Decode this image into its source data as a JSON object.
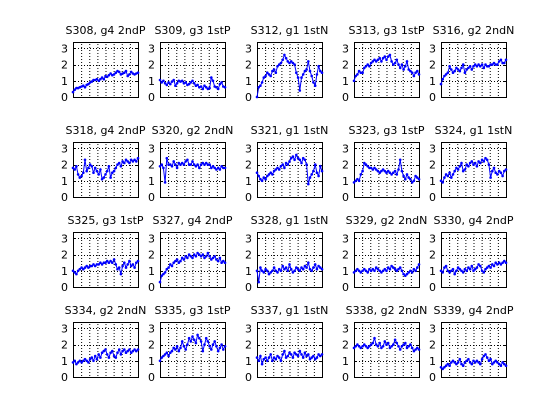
{
  "figure": {
    "background": "#ffffff",
    "grid": "dotted",
    "series_color": "#0000ff",
    "marker": "point"
  },
  "chart_data": [
    {
      "type": "line",
      "title": "S308, g4 2ndP",
      "ylim": [
        0,
        3.4
      ],
      "yticks": [
        0,
        1,
        2,
        3
      ],
      "grid": true,
      "series": [
        {
          "values": [
            0.3,
            0.45,
            0.55,
            0.55,
            0.6,
            0.65,
            0.7,
            0.6,
            0.75,
            0.8,
            0.9,
            0.95,
            1.05,
            1.05,
            1.1,
            1.0,
            1.1,
            1.2,
            1.1,
            1.3,
            1.25,
            1.35,
            1.45,
            1.35,
            1.4,
            1.5,
            1.6,
            1.55,
            1.4,
            1.45,
            1.5,
            1.6,
            1.3,
            1.4,
            1.55,
            1.45,
            1.4,
            1.45,
            1.5
          ]
        }
      ]
    },
    {
      "type": "line",
      "title": "S309, g3 1stP",
      "ylim": [
        0,
        3.4
      ],
      "yticks": [
        0,
        1,
        2,
        3
      ],
      "grid": true,
      "series": [
        {
          "values": [
            1.05,
            0.9,
            1.0,
            0.85,
            0.75,
            0.9,
            0.8,
            0.95,
            1.05,
            0.7,
            0.85,
            1.0,
            0.95,
            1.0,
            0.85,
            0.9,
            0.75,
            0.8,
            0.9,
            1.0,
            0.85,
            0.7,
            0.75,
            0.6,
            0.65,
            0.5,
            0.7,
            0.6,
            0.5,
            0.55,
            1.2,
            1.0,
            0.65,
            0.6,
            0.5,
            0.8,
            0.9,
            0.65,
            0.6
          ]
        }
      ]
    },
    {
      "type": "line",
      "title": "S312, g1 1stN",
      "ylim": [
        0,
        3.4
      ],
      "yticks": [
        0,
        1,
        2,
        3
      ],
      "grid": true,
      "series": [
        {
          "values": [
            0.0,
            0.6,
            0.7,
            0.9,
            1.2,
            1.3,
            1.5,
            1.4,
            1.3,
            1.6,
            1.7,
            1.5,
            1.9,
            2.0,
            2.1,
            2.3,
            2.6,
            2.4,
            2.2,
            2.1,
            2.2,
            2.1,
            2.0,
            1.5,
            1.2,
            0.4,
            1.2,
            1.4,
            1.6,
            1.7,
            2.2,
            1.6,
            1.3,
            0.9,
            0.7,
            1.4,
            1.9,
            1.6,
            1.5
          ]
        }
      ]
    },
    {
      "type": "line",
      "title": "S313, g3 1stP",
      "ylim": [
        0,
        3.4
      ],
      "yticks": [
        0,
        1,
        2,
        3
      ],
      "grid": true,
      "series": [
        {
          "values": [
            1.0,
            1.3,
            1.4,
            1.6,
            1.5,
            1.5,
            1.8,
            1.9,
            2.0,
            1.9,
            2.1,
            2.2,
            2.3,
            2.2,
            2.3,
            2.4,
            2.2,
            2.4,
            2.5,
            2.3,
            2.5,
            2.6,
            2.2,
            2.0,
            2.1,
            2.3,
            2.0,
            1.8,
            2.0,
            1.7,
            1.9,
            2.2,
            1.7,
            1.6,
            1.5,
            1.3,
            1.5,
            1.6,
            1.4
          ]
        }
      ]
    },
    {
      "type": "line",
      "title": "S316, g2 2ndN",
      "ylim": [
        0,
        3.4
      ],
      "yticks": [
        0,
        1,
        2,
        3
      ],
      "grid": true,
      "series": [
        {
          "values": [
            0.8,
            1.1,
            1.3,
            1.4,
            1.5,
            1.9,
            1.7,
            1.5,
            1.6,
            1.8,
            1.7,
            1.6,
            1.8,
            2.0,
            1.5,
            1.7,
            1.8,
            1.9,
            1.7,
            1.9,
            2.0,
            1.9,
            2.0,
            1.9,
            2.0,
            1.8,
            2.0,
            1.9,
            1.9,
            2.0,
            2.0,
            2.1,
            2.0,
            2.0,
            2.2,
            2.3,
            2.1,
            2.1,
            2.3
          ]
        }
      ]
    },
    {
      "type": "line",
      "title": "S318, g4 2ndP",
      "ylim": [
        0,
        3.4
      ],
      "yticks": [
        0,
        1,
        2,
        3
      ],
      "grid": true,
      "series": [
        {
          "values": [
            1.8,
            1.7,
            1.9,
            1.4,
            1.2,
            1.3,
            1.5,
            2.3,
            1.6,
            1.8,
            2.0,
            1.9,
            1.5,
            1.8,
            1.6,
            1.4,
            1.7,
            1.1,
            1.2,
            1.4,
            1.6,
            1.9,
            1.2,
            1.5,
            1.6,
            1.8,
            2.0,
            2.1,
            1.9,
            2.2,
            2.1,
            2.3,
            2.2,
            2.1,
            2.3,
            2.2,
            2.3,
            2.2,
            2.4
          ]
        }
      ]
    },
    {
      "type": "line",
      "title": "S320, g2 2ndN",
      "ylim": [
        0,
        3.4
      ],
      "yticks": [
        0,
        1,
        2,
        3
      ],
      "grid": true,
      "series": [
        {
          "values": [
            1.9,
            2.0,
            1.8,
            0.9,
            2.4,
            2.0,
            2.0,
            1.9,
            2.2,
            2.0,
            1.8,
            2.1,
            2.0,
            2.1,
            2.0,
            2.2,
            2.3,
            2.0,
            2.0,
            2.2,
            2.0,
            1.9,
            2.0,
            1.8,
            2.0,
            2.1,
            2.0,
            2.1,
            2.0,
            2.0,
            1.8,
            1.9,
            1.8,
            1.7,
            1.8,
            1.7,
            1.9,
            1.8,
            1.8
          ]
        }
      ]
    },
    {
      "type": "line",
      "title": "S321, g1 1stN",
      "ylim": [
        0,
        3.4
      ],
      "yticks": [
        0,
        1,
        2,
        3
      ],
      "grid": true,
      "series": [
        {
          "values": [
            1.5,
            1.3,
            1.1,
            1.0,
            1.2,
            1.1,
            1.3,
            1.4,
            1.5,
            1.4,
            1.6,
            1.7,
            1.8,
            1.7,
            1.9,
            2.0,
            1.8,
            2.1,
            2.0,
            2.2,
            2.4,
            2.5,
            2.3,
            2.6,
            2.4,
            2.3,
            2.1,
            2.4,
            2.3,
            2.0,
            0.8,
            1.2,
            1.4,
            1.6,
            2.0,
            1.5,
            1.3,
            1.9,
            1.6
          ]
        }
      ]
    },
    {
      "type": "line",
      "title": "S323, g3 1stP",
      "ylim": [
        0,
        3.4
      ],
      "yticks": [
        0,
        1,
        2,
        3
      ],
      "grid": true,
      "series": [
        {
          "values": [
            0.9,
            1.0,
            1.1,
            1.0,
            1.4,
            1.6,
            2.1,
            2.0,
            1.9,
            1.8,
            1.8,
            1.7,
            1.8,
            1.7,
            1.6,
            1.5,
            1.6,
            1.7,
            1.6,
            1.5,
            1.6,
            1.5,
            1.4,
            1.5,
            1.6,
            1.4,
            1.7,
            2.3,
            1.6,
            1.3,
            1.1,
            1.4,
            1.2,
            1.1,
            0.9,
            1.0,
            1.3,
            1.2,
            1.1
          ]
        }
      ]
    },
    {
      "type": "line",
      "title": "S324, g1 1stN",
      "ylim": [
        0,
        3.4
      ],
      "yticks": [
        0,
        1,
        2,
        3
      ],
      "grid": true,
      "series": [
        {
          "values": [
            1.0,
            0.9,
            1.2,
            1.4,
            1.3,
            1.5,
            1.2,
            1.4,
            1.6,
            1.8,
            1.7,
            1.9,
            2.1,
            1.6,
            1.7,
            2.0,
            1.9,
            2.1,
            2.2,
            2.0,
            2.1,
            1.9,
            2.2,
            2.1,
            2.3,
            2.2,
            2.4,
            2.3,
            2.0,
            1.2,
            1.6,
            1.8,
            1.5,
            1.4,
            1.6,
            1.5,
            1.3,
            1.6,
            1.7
          ]
        }
      ]
    },
    {
      "type": "line",
      "title": "S325, g3 1stP",
      "ylim": [
        0,
        3.4
      ],
      "yticks": [
        0,
        1,
        2,
        3
      ],
      "grid": true,
      "series": [
        {
          "values": [
            1.0,
            0.9,
            0.8,
            1.0,
            1.1,
            1.2,
            1.1,
            1.2,
            1.3,
            1.2,
            1.3,
            1.3,
            1.4,
            1.3,
            1.4,
            1.4,
            1.5,
            1.4,
            1.5,
            1.5,
            1.6,
            1.5,
            1.6,
            1.5,
            1.7,
            1.4,
            1.1,
            1.2,
            0.8,
            1.3,
            1.5,
            1.2,
            1.4,
            1.6,
            1.3,
            1.4,
            1.2,
            1.5,
            1.6
          ]
        }
      ]
    },
    {
      "type": "line",
      "title": "S327, g4 2ndP",
      "ylim": [
        0,
        3.4
      ],
      "yticks": [
        0,
        1,
        2,
        3
      ],
      "grid": true,
      "series": [
        {
          "values": [
            0.3,
            0.7,
            0.8,
            0.9,
            1.1,
            1.2,
            1.4,
            1.3,
            1.5,
            1.6,
            1.7,
            1.5,
            1.6,
            1.8,
            1.7,
            1.9,
            1.8,
            2.0,
            1.9,
            1.8,
            2.0,
            1.9,
            2.1,
            2.0,
            1.9,
            2.0,
            1.8,
            1.9,
            2.1,
            1.9,
            1.7,
            1.8,
            1.9,
            1.7,
            1.6,
            1.8,
            1.5,
            1.6,
            1.5
          ]
        }
      ]
    },
    {
      "type": "line",
      "title": "S328, g1 1stN",
      "ylim": [
        0,
        3.4
      ],
      "yticks": [
        0,
        1,
        2,
        3
      ],
      "grid": true,
      "series": [
        {
          "values": [
            1.0,
            0.3,
            1.2,
            1.0,
            0.9,
            1.1,
            1.0,
            0.8,
            0.9,
            1.0,
            1.2,
            1.0,
            0.9,
            1.1,
            1.0,
            1.3,
            1.1,
            1.2,
            1.0,
            1.4,
            1.1,
            0.9,
            1.0,
            1.2,
            1.1,
            1.0,
            1.2,
            1.1,
            1.3,
            1.2,
            1.5,
            1.1,
            1.0,
            1.2,
            1.4,
            1.1,
            1.3,
            1.2,
            1.1
          ]
        }
      ]
    },
    {
      "type": "line",
      "title": "S329, g2 2ndN",
      "ylim": [
        0,
        3.4
      ],
      "yticks": [
        0,
        1,
        2,
        3
      ],
      "grid": true,
      "series": [
        {
          "values": [
            0.9,
            1.0,
            1.1,
            1.0,
            0.9,
            1.0,
            1.1,
            1.0,
            0.9,
            1.1,
            1.0,
            1.1,
            1.0,
            1.2,
            1.1,
            1.0,
            0.9,
            1.0,
            1.1,
            1.0,
            1.2,
            1.1,
            1.3,
            1.2,
            1.1,
            1.0,
            1.1,
            1.2,
            1.0,
            0.8,
            0.7,
            0.8,
            0.9,
            1.0,
            0.9,
            1.1,
            1.0,
            1.2,
            1.4
          ]
        }
      ]
    },
    {
      "type": "line",
      "title": "S330, g4 2ndP",
      "ylim": [
        0,
        3.4
      ],
      "yticks": [
        0,
        1,
        2,
        3
      ],
      "grid": true,
      "series": [
        {
          "values": [
            1.0,
            0.9,
            1.2,
            1.3,
            1.0,
            0.9,
            1.0,
            1.1,
            0.8,
            1.0,
            1.2,
            1.1,
            1.0,
            0.9,
            1.1,
            1.0,
            1.2,
            1.1,
            1.3,
            1.0,
            1.1,
            1.2,
            1.4,
            1.3,
            1.0,
            0.9,
            1.1,
            1.2,
            1.3,
            1.2,
            1.4,
            1.3,
            1.5,
            1.4,
            1.5,
            1.4,
            1.5,
            1.6,
            1.5
          ]
        }
      ]
    },
    {
      "type": "line",
      "title": "S334, g2 2ndN",
      "ylim": [
        0,
        3.4
      ],
      "yticks": [
        0,
        1,
        2,
        3
      ],
      "grid": true,
      "series": [
        {
          "values": [
            0.9,
            1.0,
            0.8,
            0.9,
            1.0,
            0.9,
            1.0,
            1.1,
            1.0,
            0.9,
            1.1,
            1.2,
            1.0,
            1.3,
            1.1,
            1.4,
            1.2,
            1.5,
            1.6,
            1.7,
            1.4,
            1.2,
            1.5,
            1.6,
            1.3,
            1.2,
            1.5,
            1.7,
            1.4,
            1.6,
            1.7,
            1.5,
            1.6,
            1.7,
            1.5,
            1.6,
            1.7,
            1.6,
            1.7
          ]
        }
      ]
    },
    {
      "type": "line",
      "title": "S335, g3 1stP",
      "ylim": [
        0,
        3.4
      ],
      "yticks": [
        0,
        1,
        2,
        3
      ],
      "grid": true,
      "series": [
        {
          "values": [
            1.0,
            1.2,
            1.3,
            1.4,
            1.5,
            1.3,
            1.5,
            1.6,
            1.8,
            1.7,
            1.9,
            1.6,
            1.8,
            2.2,
            1.9,
            1.7,
            2.0,
            2.4,
            2.2,
            2.5,
            2.3,
            2.1,
            2.6,
            2.4,
            2.2,
            1.6,
            2.0,
            2.4,
            2.2,
            1.9,
            1.7,
            2.0,
            2.2,
            1.9,
            1.6,
            1.8,
            2.0,
            1.7,
            1.9
          ]
        }
      ]
    },
    {
      "type": "line",
      "title": "S337, g1 1stN",
      "ylim": [
        0,
        3.4
      ],
      "yticks": [
        0,
        1,
        2,
        3
      ],
      "grid": true,
      "series": [
        {
          "values": [
            1.2,
            1.0,
            1.3,
            0.8,
            1.1,
            1.2,
            1.0,
            1.2,
            1.4,
            1.0,
            1.2,
            1.1,
            1.3,
            1.2,
            1.0,
            1.4,
            1.6,
            1.2,
            1.3,
            1.5,
            1.4,
            1.2,
            1.5,
            1.4,
            1.3,
            1.6,
            1.4,
            1.2,
            1.5,
            1.3,
            1.4,
            1.1,
            1.2,
            1.3,
            1.1,
            1.2,
            1.4,
            1.3,
            1.4
          ]
        }
      ]
    },
    {
      "type": "line",
      "title": "S338, g2 2ndN",
      "ylim": [
        0,
        3.4
      ],
      "yticks": [
        0,
        1,
        2,
        3
      ],
      "grid": true,
      "series": [
        {
          "values": [
            1.8,
            1.9,
            2.0,
            1.9,
            1.8,
            1.9,
            2.0,
            1.9,
            1.8,
            1.9,
            2.0,
            2.1,
            2.4,
            2.0,
            1.9,
            2.1,
            1.8,
            1.9,
            2.2,
            2.0,
            2.1,
            1.8,
            1.9,
            2.0,
            2.3,
            2.1,
            1.9,
            1.7,
            1.9,
            2.0,
            2.1,
            1.8,
            1.9,
            2.0,
            1.8,
            1.6,
            1.7,
            1.8,
            1.7
          ]
        }
      ]
    },
    {
      "type": "line",
      "title": "S339, g4 2ndP",
      "ylim": [
        0,
        3.4
      ],
      "yticks": [
        0,
        1,
        2,
        3
      ],
      "grid": true,
      "series": [
        {
          "values": [
            0.6,
            0.5,
            0.6,
            0.7,
            0.8,
            0.7,
            0.9,
            1.0,
            0.9,
            0.8,
            0.9,
            1.1,
            0.8,
            0.7,
            0.9,
            1.0,
            1.1,
            0.9,
            0.8,
            1.0,
            0.9,
            1.0,
            0.9,
            0.8,
            1.1,
            1.3,
            1.4,
            1.2,
            1.0,
            1.1,
            0.8,
            0.9,
            1.0,
            0.9,
            0.8,
            0.7,
            0.9,
            0.8,
            0.7
          ]
        }
      ]
    }
  ]
}
